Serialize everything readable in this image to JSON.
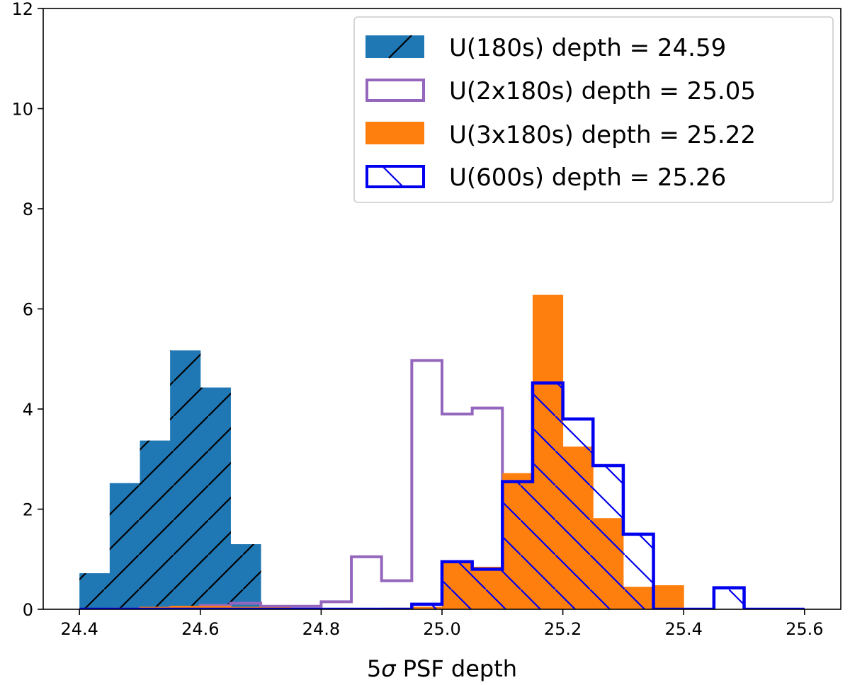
{
  "chart_data": {
    "type": "histogram",
    "xlabel_prefix": "5",
    "xlabel_sigma": "σ",
    "xlabel_suffix": " PSF depth",
    "ylabel": "",
    "xlim": [
      24.34,
      25.66
    ],
    "ylim": [
      0,
      12
    ],
    "x_ticks": [
      {
        "value": 24.4,
        "label": "24.4"
      },
      {
        "value": 24.6,
        "label": "24.6"
      },
      {
        "value": 24.8,
        "label": "24.8"
      },
      {
        "value": 25.0,
        "label": "25.0"
      },
      {
        "value": 25.2,
        "label": "25.2"
      },
      {
        "value": 25.4,
        "label": "25.4"
      },
      {
        "value": 25.6,
        "label": "25.6"
      }
    ],
    "y_ticks": [
      {
        "value": 0,
        "label": "0"
      },
      {
        "value": 2,
        "label": "2"
      },
      {
        "value": 4,
        "label": "4"
      },
      {
        "value": 6,
        "label": "6"
      },
      {
        "value": 8,
        "label": "8"
      },
      {
        "value": 10,
        "label": "10"
      },
      {
        "value": 12,
        "label": "12"
      }
    ],
    "legend_position": "top-right",
    "series": [
      {
        "name": "U(180s) depth = 24.59",
        "style": "filled-hatched",
        "color": "#1f77b4",
        "hatch": "/",
        "hatch_color": "#000000",
        "edges": [
          24.4,
          24.45,
          24.5,
          24.55,
          24.6,
          24.65,
          24.7,
          24.74
        ],
        "values": [
          0.72,
          2.52,
          3.37,
          5.17,
          4.43,
          1.3,
          0.0
        ]
      },
      {
        "name": "U(2x180s) depth = 25.05",
        "style": "step",
        "color": "#9467bd",
        "edges": [
          24.4,
          24.45,
          24.5,
          24.55,
          24.6,
          24.65,
          24.7,
          24.75,
          24.8,
          24.85,
          24.9,
          24.95,
          25.0,
          25.05,
          25.1,
          25.15,
          25.2,
          25.25,
          25.3,
          25.35,
          25.4
        ],
        "values": [
          0.0,
          0.0,
          0.02,
          0.04,
          0.08,
          0.12,
          0.06,
          0.06,
          0.15,
          1.05,
          0.57,
          4.97,
          3.9,
          4.02,
          1.98,
          0.15,
          0.37,
          0.0,
          0.0,
          0.0
        ]
      },
      {
        "name": "U(3x180s) depth = 25.22",
        "style": "filled",
        "color": "#ff7f0e",
        "edges": [
          24.45,
          24.5,
          24.55,
          24.6,
          24.65,
          24.7,
          24.75,
          24.8,
          24.85,
          24.9,
          24.95,
          25.0,
          25.05,
          25.1,
          25.15,
          25.2,
          25.25,
          25.3,
          25.35,
          25.4,
          25.45,
          25.5
        ],
        "values": [
          0.03,
          0.05,
          0.07,
          0.07,
          0.05,
          0.04,
          0.02,
          0.01,
          0.02,
          0.03,
          0.05,
          0.92,
          0.85,
          2.72,
          6.28,
          3.25,
          1.82,
          0.45,
          0.48,
          0.0,
          0.0
        ]
      },
      {
        "name": "U(600s) depth = 25.26",
        "style": "step-hatched",
        "color": "#0000ee",
        "hatch": "\\",
        "edges": [
          24.4,
          24.45,
          24.5,
          24.55,
          24.6,
          24.65,
          24.7,
          24.75,
          24.8,
          24.85,
          24.9,
          24.95,
          25.0,
          25.05,
          25.1,
          25.15,
          25.2,
          25.25,
          25.3,
          25.35,
          25.4,
          25.45,
          25.5,
          25.55,
          25.6
        ],
        "values": [
          0.0,
          0.0,
          0.0,
          0.0,
          0.0,
          0.0,
          0.0,
          0.0,
          0.0,
          0.0,
          0.0,
          0.1,
          0.95,
          0.8,
          2.55,
          4.52,
          3.8,
          2.87,
          1.5,
          0.0,
          0.0,
          0.43,
          0.0,
          0.0
        ]
      }
    ]
  }
}
